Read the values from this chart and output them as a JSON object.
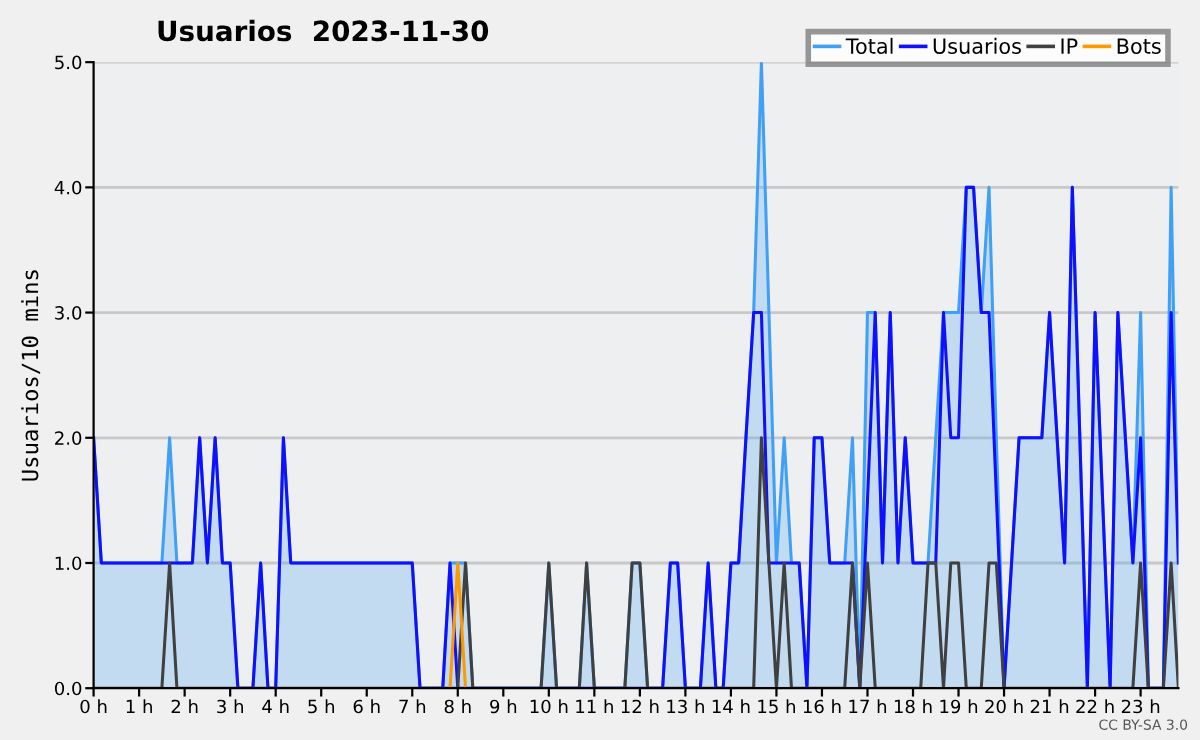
{
  "chart_data": {
    "type": "line",
    "title": "Usuarios  2023-11-30",
    "ylabel": "Usuarios/10 mins",
    "annotations": [
      "CC BY-SA 3.0"
    ],
    "xlim": [
      0,
      23.83
    ],
    "ylim": [
      0,
      5
    ],
    "xticks": [
      {
        "value": 0,
        "label": "0 h"
      },
      {
        "value": 1,
        "label": "1 h"
      },
      {
        "value": 2,
        "label": "2 h"
      },
      {
        "value": 3,
        "label": "3 h"
      },
      {
        "value": 4,
        "label": "4 h"
      },
      {
        "value": 5,
        "label": "5 h"
      },
      {
        "value": 6,
        "label": "6 h"
      },
      {
        "value": 7,
        "label": "7 h"
      },
      {
        "value": 8,
        "label": "8 h"
      },
      {
        "value": 9,
        "label": "9 h"
      },
      {
        "value": 10,
        "label": "10 h"
      },
      {
        "value": 11,
        "label": "11 h"
      },
      {
        "value": 12,
        "label": "12 h"
      },
      {
        "value": 13,
        "label": "13 h"
      },
      {
        "value": 14,
        "label": "14 h"
      },
      {
        "value": 15,
        "label": "15 h"
      },
      {
        "value": 16,
        "label": "16 h"
      },
      {
        "value": 17,
        "label": "17 h"
      },
      {
        "value": 18,
        "label": "18 h"
      },
      {
        "value": 19,
        "label": "19 h"
      },
      {
        "value": 20,
        "label": "20 h"
      },
      {
        "value": 21,
        "label": "21 h"
      },
      {
        "value": 22,
        "label": "22 h"
      },
      {
        "value": 23,
        "label": "23 h"
      }
    ],
    "yticks": [
      {
        "value": 0,
        "label": "0.0"
      },
      {
        "value": 1,
        "label": "1.0"
      },
      {
        "value": 2,
        "label": "2.0"
      },
      {
        "value": 3,
        "label": "3.0"
      },
      {
        "value": 4,
        "label": "4.0"
      },
      {
        "value": 5,
        "label": "5.0"
      }
    ],
    "grid": "y",
    "legend": "top right",
    "marker": "none",
    "line_style": "solid",
    "series": [
      {
        "name": "Total",
        "type": "area",
        "color": "#3fa0f5",
        "x": [
          0,
          0.17,
          1.5,
          1.67,
          1.83,
          2.17,
          2.33,
          2.5,
          2.67,
          2.83,
          3.0,
          3.17,
          3.5,
          3.67,
          3.83,
          4.0,
          4.17,
          4.33,
          7.0,
          7.17,
          7.67,
          7.83,
          8.17,
          8.33,
          9.83,
          10.0,
          10.17,
          10.67,
          10.83,
          11.0,
          11.67,
          11.83,
          12.0,
          12.17,
          12.5,
          12.67,
          12.83,
          13.0,
          13.33,
          13.5,
          13.67,
          13.83,
          14.0,
          14.17,
          14.33,
          14.5,
          14.67,
          15.0,
          15.17,
          15.33,
          15.5,
          15.67,
          15.83,
          16.0,
          16.17,
          16.5,
          16.67,
          16.83,
          17.0,
          17.17,
          17.33,
          17.5,
          17.67,
          17.83,
          18.0,
          18.33,
          18.5,
          18.67,
          19.0,
          19.17,
          19.33,
          19.5,
          19.67,
          19.83,
          20.0,
          20.33,
          20.83,
          21.0,
          21.33,
          21.5,
          21.83,
          22.0,
          22.33,
          22.5,
          22.83,
          23.0,
          23.17,
          23.5,
          23.67,
          23.83
        ],
        "values": [
          2,
          1,
          1,
          2,
          1,
          1,
          2,
          1,
          2,
          1,
          1,
          0,
          0,
          1,
          0,
          0,
          2,
          1,
          1,
          0,
          0,
          1,
          1,
          0,
          0,
          1,
          0,
          0,
          1,
          0,
          0,
          1,
          1,
          0,
          0,
          1,
          1,
          0,
          0,
          1,
          0,
          0,
          1,
          1,
          2,
          3,
          5,
          1,
          2,
          1,
          1,
          0,
          2,
          2,
          1,
          1,
          2,
          0,
          3,
          3,
          1,
          3,
          1,
          2,
          1,
          1,
          2,
          3,
          3,
          4,
          4,
          3,
          4,
          2,
          0,
          2,
          2,
          3,
          1,
          4,
          0,
          3,
          0,
          3,
          1,
          3,
          0,
          0,
          4,
          1
        ]
      },
      {
        "name": "Usuarios",
        "color": "#1010ff",
        "x": [
          0,
          0.17,
          2.17,
          2.33,
          2.5,
          2.67,
          2.83,
          3.0,
          3.17,
          3.5,
          3.67,
          3.83,
          4.0,
          4.17,
          4.33,
          7.0,
          7.17,
          7.67,
          7.83,
          8.0,
          12.5,
          12.67,
          12.83,
          13.0,
          13.33,
          13.5,
          13.67,
          13.83,
          14.0,
          14.17,
          14.33,
          14.5,
          14.67,
          14.83,
          15.5,
          15.67,
          15.83,
          16.0,
          16.17,
          16.67,
          16.83,
          17.17,
          17.33,
          17.5,
          17.67,
          17.83,
          18.0,
          18.5,
          18.67,
          18.83,
          19.0,
          19.17,
          19.33,
          19.5,
          19.67,
          20.0,
          20.33,
          20.83,
          21.0,
          21.33,
          21.5,
          21.83,
          22.0,
          22.33,
          22.5,
          22.83,
          23.0,
          23.17,
          23.5,
          23.67,
          23.83
        ],
        "values": [
          2,
          1,
          1,
          2,
          1,
          2,
          1,
          1,
          0,
          0,
          1,
          0,
          0,
          2,
          1,
          1,
          0,
          0,
          1,
          0,
          0,
          1,
          1,
          0,
          0,
          1,
          0,
          0,
          1,
          1,
          2,
          3,
          3,
          1,
          1,
          0,
          2,
          2,
          1,
          1,
          0,
          3,
          1,
          3,
          1,
          2,
          1,
          1,
          3,
          2,
          2,
          4,
          4,
          3,
          3,
          0,
          2,
          2,
          3,
          1,
          4,
          0,
          3,
          0,
          3,
          1,
          2,
          0,
          0,
          3,
          1
        ]
      },
      {
        "name": "IP",
        "color": "#404040",
        "x": [
          0,
          1.5,
          1.67,
          1.83,
          8.0,
          8.17,
          8.33,
          9.83,
          10.0,
          10.17,
          10.67,
          10.83,
          11.0,
          11.67,
          11.83,
          12.0,
          12.17,
          14.5,
          14.67,
          15.0,
          15.17,
          15.33,
          16.5,
          16.67,
          16.83,
          17.0,
          17.17,
          18.17,
          18.33,
          18.5,
          18.67,
          18.83,
          19.0,
          19.17,
          19.5,
          19.67,
          19.83,
          20.0,
          22.83,
          23.0,
          23.17,
          23.5,
          23.67,
          23.83
        ],
        "values": [
          0,
          0,
          1,
          0,
          0,
          1,
          0,
          0,
          1,
          0,
          0,
          1,
          0,
          0,
          1,
          1,
          0,
          0,
          2,
          0,
          1,
          0,
          0,
          1,
          0,
          1,
          0,
          0,
          1,
          1,
          0,
          1,
          1,
          0,
          0,
          1,
          1,
          0,
          0,
          1,
          0,
          0,
          1,
          0
        ]
      },
      {
        "name": "Bots",
        "color": "#ff9900",
        "x": [
          7.83,
          8.0,
          8.17
        ],
        "values": [
          0,
          1,
          0
        ]
      }
    ]
  }
}
